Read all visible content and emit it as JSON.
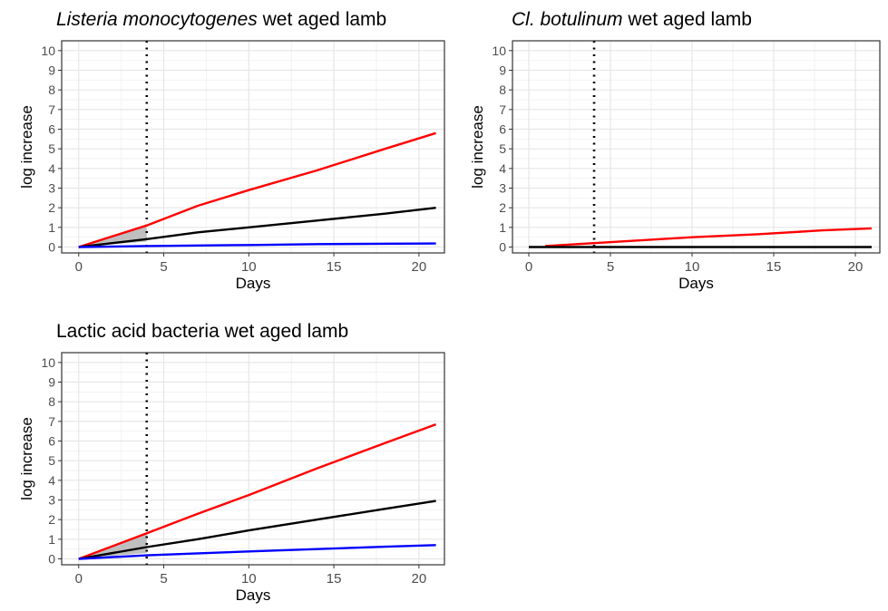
{
  "chart_data": [
    {
      "type": "line",
      "title_parts": [
        {
          "text": "Listeria monocytogenes",
          "italic": true
        },
        {
          "text": " wet aged lamb",
          "italic": false
        }
      ],
      "xlabel": "Days",
      "ylabel": "log increase",
      "xlim": [
        -1,
        21.5
      ],
      "ylim": [
        -0.3,
        10.5
      ],
      "x_ticks": [
        0,
        5,
        10,
        15,
        20
      ],
      "y_ticks": [
        0,
        1,
        2,
        3,
        4,
        5,
        6,
        7,
        8,
        9,
        10
      ],
      "grid": true,
      "vline": {
        "x": 4,
        "style": "dotted"
      },
      "band": {
        "x": [
          0,
          4
        ],
        "lower": [
          0,
          0.28
        ],
        "upper": [
          0,
          1.12
        ]
      },
      "series": [
        {
          "color": "#ff0000",
          "x": [
            0,
            4,
            7,
            10,
            14,
            18,
            21
          ],
          "values": [
            0,
            1.1,
            2.1,
            2.9,
            3.9,
            5.0,
            5.8
          ]
        },
        {
          "color": "#000000",
          "x": [
            0,
            4,
            7,
            10,
            14,
            18,
            21
          ],
          "values": [
            0,
            0.4,
            0.75,
            1.0,
            1.35,
            1.7,
            2.0
          ]
        },
        {
          "color": "#0000ff",
          "x": [
            0,
            4,
            7,
            10,
            14,
            21
          ],
          "values": [
            0,
            0.05,
            0.08,
            0.1,
            0.15,
            0.18
          ]
        }
      ]
    },
    {
      "type": "line",
      "title_parts": [
        {
          "text": "Cl. botulinum",
          "italic": true
        },
        {
          "text": " wet aged lamb",
          "italic": false
        }
      ],
      "xlabel": "Days",
      "ylabel": "log increase",
      "xlim": [
        -1,
        21.5
      ],
      "ylim": [
        -0.3,
        10.5
      ],
      "x_ticks": [
        0,
        5,
        10,
        15,
        20
      ],
      "y_ticks": [
        0,
        1,
        2,
        3,
        4,
        5,
        6,
        7,
        8,
        9,
        10
      ],
      "grid": true,
      "vline": {
        "x": 4,
        "style": "dotted"
      },
      "series": [
        {
          "color": "#ff0000",
          "x": [
            1,
            4,
            7,
            10,
            14,
            18,
            21
          ],
          "values": [
            0.05,
            0.2,
            0.35,
            0.5,
            0.65,
            0.85,
            0.95
          ]
        },
        {
          "color": "#000000",
          "x": [
            0,
            21
          ],
          "values": [
            0,
            0
          ]
        }
      ]
    },
    {
      "type": "line",
      "title_parts": [
        {
          "text": "Lactic acid bacteria wet aged lamb",
          "italic": false
        }
      ],
      "xlabel": "Days",
      "ylabel": "log increase",
      "xlim": [
        -1,
        21.5
      ],
      "ylim": [
        -0.3,
        10.5
      ],
      "x_ticks": [
        0,
        5,
        10,
        15,
        20
      ],
      "y_ticks": [
        0,
        1,
        2,
        3,
        4,
        5,
        6,
        7,
        8,
        9,
        10
      ],
      "grid": true,
      "vline": {
        "x": 4,
        "style": "dotted"
      },
      "band": {
        "x": [
          0,
          4
        ],
        "lower": [
          0,
          0.3
        ],
        "upper": [
          0,
          1.25
        ]
      },
      "series": [
        {
          "color": "#ff0000",
          "x": [
            0,
            4,
            7,
            10,
            14,
            18,
            21
          ],
          "values": [
            0,
            1.3,
            2.3,
            3.25,
            4.6,
            5.9,
            6.85
          ]
        },
        {
          "color": "#000000",
          "x": [
            0,
            4,
            7,
            10,
            14,
            18,
            21
          ],
          "values": [
            0,
            0.6,
            1.0,
            1.45,
            2.0,
            2.55,
            2.95
          ]
        },
        {
          "color": "#0000ff",
          "x": [
            0,
            4,
            7,
            10,
            14,
            18,
            21
          ],
          "values": [
            0,
            0.18,
            0.28,
            0.38,
            0.5,
            0.62,
            0.7
          ]
        }
      ]
    }
  ]
}
